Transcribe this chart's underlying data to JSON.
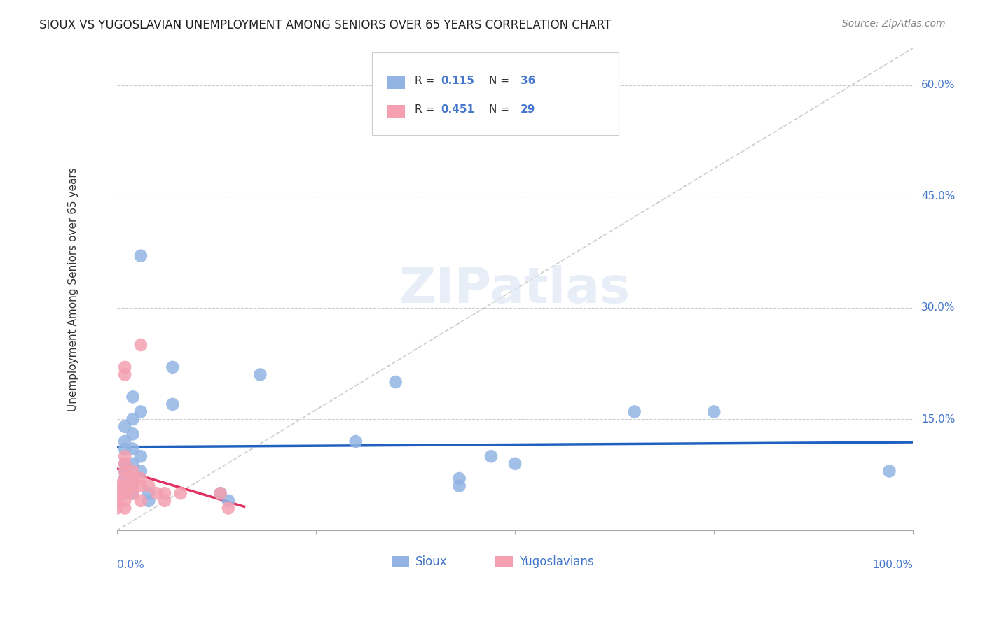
{
  "title": "SIOUX VS YUGOSLAVIAN UNEMPLOYMENT AMONG SENIORS OVER 65 YEARS CORRELATION CHART",
  "source": "Source: ZipAtlas.com",
  "ylabel": "Unemployment Among Seniors over 65 years",
  "xlim": [
    0.0,
    1.0
  ],
  "ylim": [
    0.0,
    0.65
  ],
  "sioux_color": "#92b4e3",
  "yugoslav_color": "#f4a0b0",
  "sioux_R": 0.115,
  "sioux_N": 36,
  "yugoslav_R": 0.451,
  "yugoslav_N": 29,
  "sioux_line_color": "#2060c0",
  "yugoslav_line_color": "#e03060",
  "diagonal_color": "#cccccc",
  "sioux_points": [
    [
      0.01,
      0.14
    ],
    [
      0.01,
      0.12
    ],
    [
      0.01,
      0.11
    ],
    [
      0.01,
      0.09
    ],
    [
      0.01,
      0.08
    ],
    [
      0.01,
      0.07
    ],
    [
      0.01,
      0.06
    ],
    [
      0.01,
      0.05
    ],
    [
      0.02,
      0.18
    ],
    [
      0.02,
      0.15
    ],
    [
      0.02,
      0.13
    ],
    [
      0.02,
      0.11
    ],
    [
      0.02,
      0.09
    ],
    [
      0.02,
      0.07
    ],
    [
      0.02,
      0.06
    ],
    [
      0.02,
      0.05
    ],
    [
      0.03,
      0.37
    ],
    [
      0.03,
      0.16
    ],
    [
      0.03,
      0.1
    ],
    [
      0.03,
      0.08
    ],
    [
      0.04,
      0.05
    ],
    [
      0.04,
      0.04
    ],
    [
      0.07,
      0.22
    ],
    [
      0.07,
      0.17
    ],
    [
      0.13,
      0.05
    ],
    [
      0.14,
      0.04
    ],
    [
      0.18,
      0.21
    ],
    [
      0.3,
      0.12
    ],
    [
      0.35,
      0.2
    ],
    [
      0.43,
      0.07
    ],
    [
      0.43,
      0.06
    ],
    [
      0.47,
      0.1
    ],
    [
      0.5,
      0.09
    ],
    [
      0.65,
      0.16
    ],
    [
      0.75,
      0.16
    ],
    [
      0.97,
      0.08
    ]
  ],
  "yugoslav_points": [
    [
      0.0,
      0.06
    ],
    [
      0.0,
      0.05
    ],
    [
      0.0,
      0.04
    ],
    [
      0.0,
      0.03
    ],
    [
      0.01,
      0.22
    ],
    [
      0.01,
      0.21
    ],
    [
      0.01,
      0.1
    ],
    [
      0.01,
      0.09
    ],
    [
      0.01,
      0.08
    ],
    [
      0.01,
      0.07
    ],
    [
      0.01,
      0.06
    ],
    [
      0.01,
      0.05
    ],
    [
      0.01,
      0.04
    ],
    [
      0.01,
      0.03
    ],
    [
      0.02,
      0.08
    ],
    [
      0.02,
      0.07
    ],
    [
      0.02,
      0.06
    ],
    [
      0.02,
      0.05
    ],
    [
      0.03,
      0.25
    ],
    [
      0.03,
      0.07
    ],
    [
      0.03,
      0.06
    ],
    [
      0.03,
      0.04
    ],
    [
      0.04,
      0.06
    ],
    [
      0.05,
      0.05
    ],
    [
      0.06,
      0.05
    ],
    [
      0.06,
      0.04
    ],
    [
      0.08,
      0.05
    ],
    [
      0.13,
      0.05
    ],
    [
      0.14,
      0.03
    ]
  ],
  "watermark": "ZIPatlas",
  "background_color": "#ffffff"
}
